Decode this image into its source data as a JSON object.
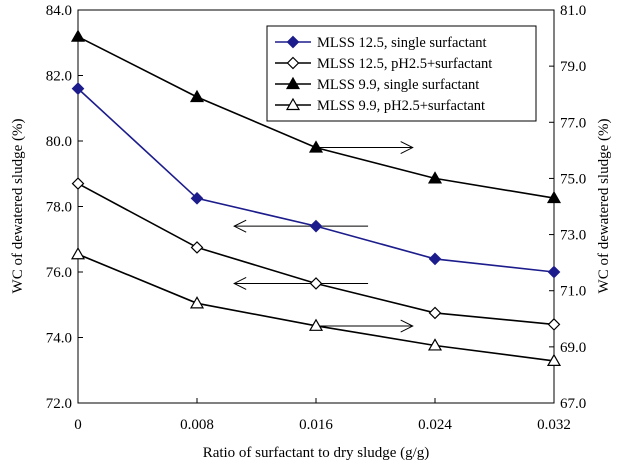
{
  "chart_data": {
    "type": "line",
    "x": [
      0,
      0.008,
      0.016,
      0.024,
      0.032
    ],
    "x_tick_labels": [
      "0",
      "0.008",
      "0.016",
      "0.024",
      "0.032"
    ],
    "xlabel": "Ratio of surfactant to dry sludge (g/g)",
    "ylabel_left": "WC of dewatered sludge (%)",
    "ylabel_right": "WC of dewatered sludge (%)",
    "ylim_left": [
      72.0,
      84.0
    ],
    "ylim_right": [
      67.0,
      81.0
    ],
    "y_tick_labels_left": [
      "72.0",
      "74.0",
      "76.0",
      "78.0",
      "80.0",
      "82.0",
      "84.0"
    ],
    "y_tick_labels_right": [
      "67.0",
      "69.0",
      "71.0",
      "73.0",
      "75.0",
      "77.0",
      "79.0",
      "81.0"
    ],
    "grid": false,
    "legend_position": "top-right",
    "series": [
      {
        "name": "MLSS 12.5, single surfactant",
        "axis": "left",
        "marker": "filled-diamond",
        "color": "#1c1c8c",
        "values": [
          81.6,
          78.25,
          77.4,
          76.4,
          76.0
        ]
      },
      {
        "name": "MLSS 12.5, pH2.5+surfactant",
        "axis": "left",
        "marker": "open-diamond",
        "color": "#000000",
        "values": [
          78.7,
          76.75,
          75.65,
          74.75,
          74.4
        ]
      },
      {
        "name": "MLSS 9.9, single surfactant",
        "axis": "right",
        "marker": "filled-triangle",
        "color": "#000000",
        "values": [
          80.05,
          77.9,
          76.1,
          75.0,
          74.3
        ]
      },
      {
        "name": "MLSS 9.9, pH2.5+surfactant",
        "axis": "right",
        "marker": "open-triangle",
        "color": "#000000",
        "values": [
          72.3,
          70.55,
          69.75,
          69.05,
          68.5
        ]
      }
    ],
    "annotations": [
      {
        "type": "arrow",
        "direction": "right",
        "x_from": 0.016,
        "x_to": 0.0225,
        "y": 79.8,
        "axis": "left"
      },
      {
        "type": "arrow",
        "direction": "left",
        "x_from": 0.0195,
        "x_to": 0.0105,
        "y": 77.4,
        "axis": "left"
      },
      {
        "type": "arrow",
        "direction": "left",
        "x_from": 0.0195,
        "x_to": 0.0105,
        "y": 75.65,
        "axis": "left"
      },
      {
        "type": "arrow",
        "direction": "right",
        "x_from": 0.016,
        "x_to": 0.0225,
        "y": 74.35,
        "axis": "left"
      }
    ]
  }
}
